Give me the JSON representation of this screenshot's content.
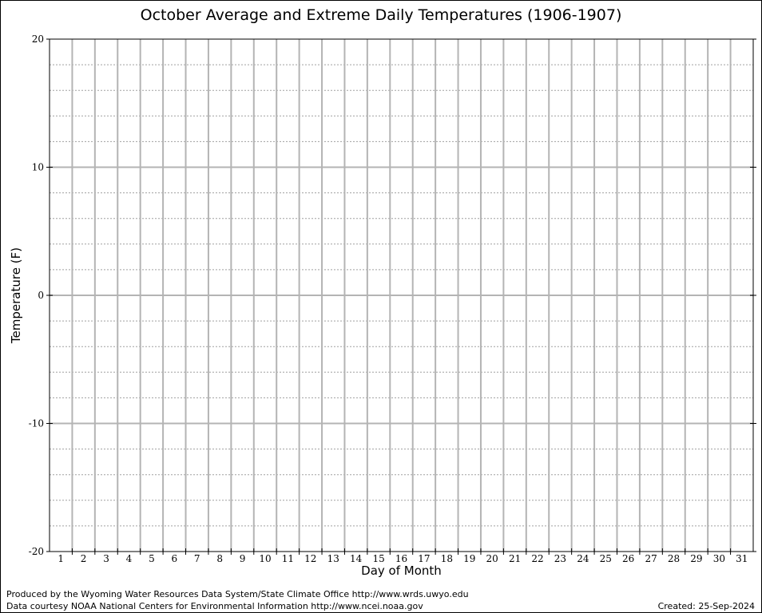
{
  "chart_data": {
    "type": "line",
    "title": "October Average and Extreme Daily Temperatures (1906-1907)",
    "xlabel": "Day of Month",
    "ylabel": "Temperature (F)",
    "xlim": [
      0.5,
      31.5
    ],
    "ylim": [
      -20,
      20
    ],
    "x_ticks": [
      1,
      2,
      3,
      4,
      5,
      6,
      7,
      8,
      9,
      10,
      11,
      12,
      13,
      14,
      15,
      16,
      17,
      18,
      19,
      20,
      21,
      22,
      23,
      24,
      25,
      26,
      27,
      28,
      29,
      30,
      31
    ],
    "y_ticks": [
      -20,
      -10,
      0,
      10,
      20
    ],
    "y_minor_step": 2,
    "grid": true,
    "series": []
  },
  "footer": {
    "produced_by": "Produced by the Wyoming Water Resources Data System/State Climate Office http://www.wrds.uwyo.edu",
    "data_courtesy": "Data courtesy NOAA National Centers for Environmental Information http://www.ncei.noaa.gov",
    "created": "Created:  25-Sep-2024"
  },
  "colors": {
    "major_grid": "#b4b4b4",
    "minor_grid": "#a0a0a0",
    "axes": "#000000"
  }
}
